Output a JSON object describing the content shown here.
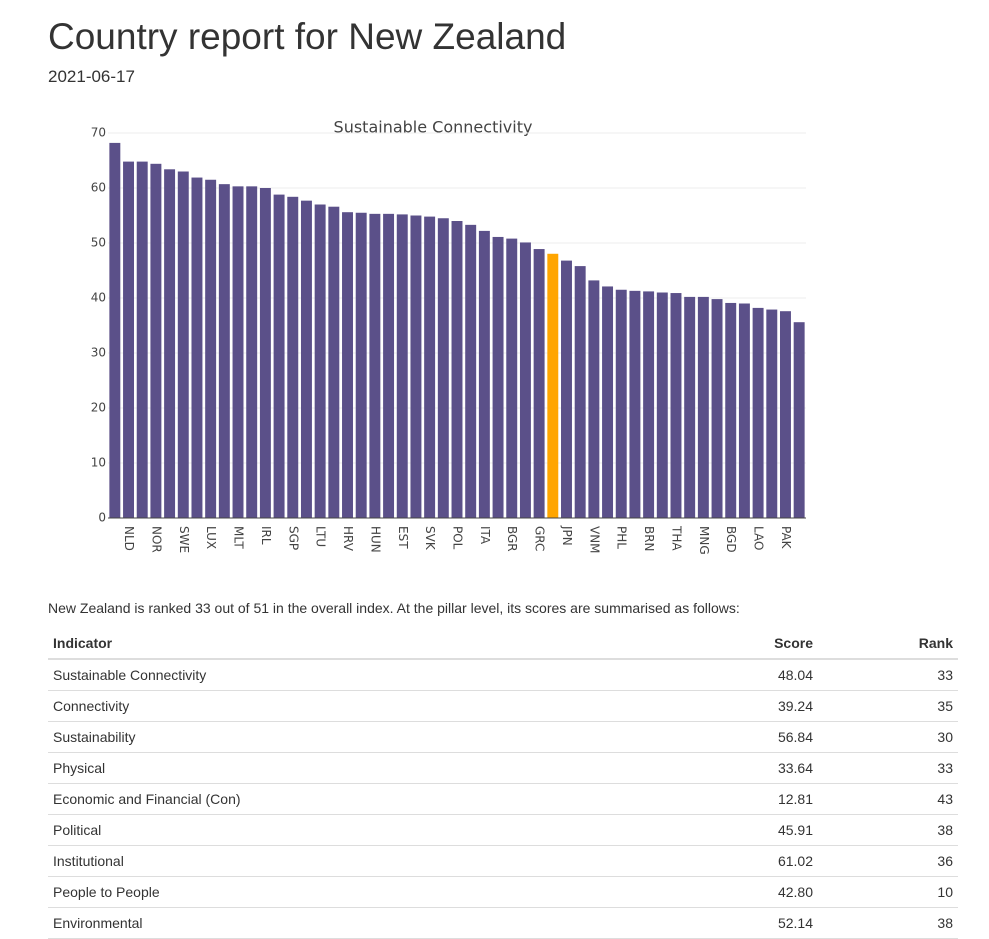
{
  "header": {
    "title": "Country report for New Zealand",
    "date": "2021-06-17"
  },
  "chart_data": {
    "type": "bar",
    "title": "Sustainable Connectivity",
    "categories": [
      null,
      "NLD",
      null,
      "NOR",
      null,
      "SWE",
      null,
      "LUX",
      null,
      "MLT",
      null,
      "IRL",
      null,
      "SGP",
      null,
      "LTU",
      null,
      "HRV",
      null,
      "HUN",
      null,
      "EST",
      null,
      "SVK",
      null,
      "POL",
      null,
      "ITA",
      null,
      "BGR",
      null,
      "GRC",
      null,
      "JPN",
      null,
      "VNM",
      null,
      "PHL",
      null,
      "BRN",
      null,
      "THA",
      null,
      "MNG",
      null,
      "BGD",
      null,
      "LAO",
      null,
      "PAK",
      null
    ],
    "values": [
      68.2,
      64.8,
      64.8,
      64.4,
      63.4,
      63.0,
      61.9,
      61.5,
      60.7,
      60.3,
      60.3,
      60.0,
      58.8,
      58.4,
      57.7,
      57.0,
      56.6,
      55.6,
      55.5,
      55.3,
      55.3,
      55.2,
      55.0,
      54.8,
      54.5,
      54.0,
      53.3,
      52.2,
      51.1,
      50.8,
      50.1,
      48.9,
      48.04,
      46.8,
      45.8,
      43.2,
      42.1,
      41.5,
      41.3,
      41.2,
      41.0,
      40.9,
      40.2,
      40.2,
      39.8,
      39.1,
      39.0,
      38.2,
      37.9,
      37.6,
      35.6
    ],
    "colors": [
      "#5b5089",
      "#5b5089",
      "#5b5089",
      "#5b5089",
      "#5b5089",
      "#5b5089",
      "#5b5089",
      "#5b5089",
      "#5b5089",
      "#5b5089",
      "#5b5089",
      "#5b5089",
      "#5b5089",
      "#5b5089",
      "#5b5089",
      "#5b5089",
      "#5b5089",
      "#5b5089",
      "#5b5089",
      "#5b5089",
      "#5b5089",
      "#5b5089",
      "#5b5089",
      "#5b5089",
      "#5b5089",
      "#5b5089",
      "#5b5089",
      "#5b5089",
      "#5b5089",
      "#5b5089",
      "#5b5089",
      "#5b5089",
      "#ffa500",
      "#5b5089",
      "#5b5089",
      "#5b5089",
      "#5b5089",
      "#5b5089",
      "#5b5089",
      "#5b5089",
      "#5b5089",
      "#5b5089",
      "#5b5089",
      "#5b5089",
      "#5b5089",
      "#5b5089",
      "#5b5089",
      "#5b5089",
      "#5b5089",
      "#5b5089",
      "#5b5089"
    ],
    "ylim": [
      0,
      70
    ],
    "yticks": [
      0,
      10,
      20,
      30,
      40,
      50,
      60,
      70
    ],
    "grid": true
  },
  "summary": "New Zealand is ranked 33 out of 51 in the overall index. At the pillar level, its scores are summarised as follows:",
  "table": {
    "columns": [
      "Indicator",
      "Score",
      "Rank"
    ],
    "rows": [
      [
        "Sustainable Connectivity",
        "48.04",
        "33"
      ],
      [
        "Connectivity",
        "39.24",
        "35"
      ],
      [
        "Sustainability",
        "56.84",
        "30"
      ],
      [
        "Physical",
        "33.64",
        "33"
      ],
      [
        "Economic and Financial (Con)",
        "12.81",
        "43"
      ],
      [
        "Political",
        "45.91",
        "38"
      ],
      [
        "Institutional",
        "61.02",
        "36"
      ],
      [
        "People to People",
        "42.80",
        "10"
      ],
      [
        "Environmental",
        "52.14",
        "38"
      ]
    ]
  }
}
